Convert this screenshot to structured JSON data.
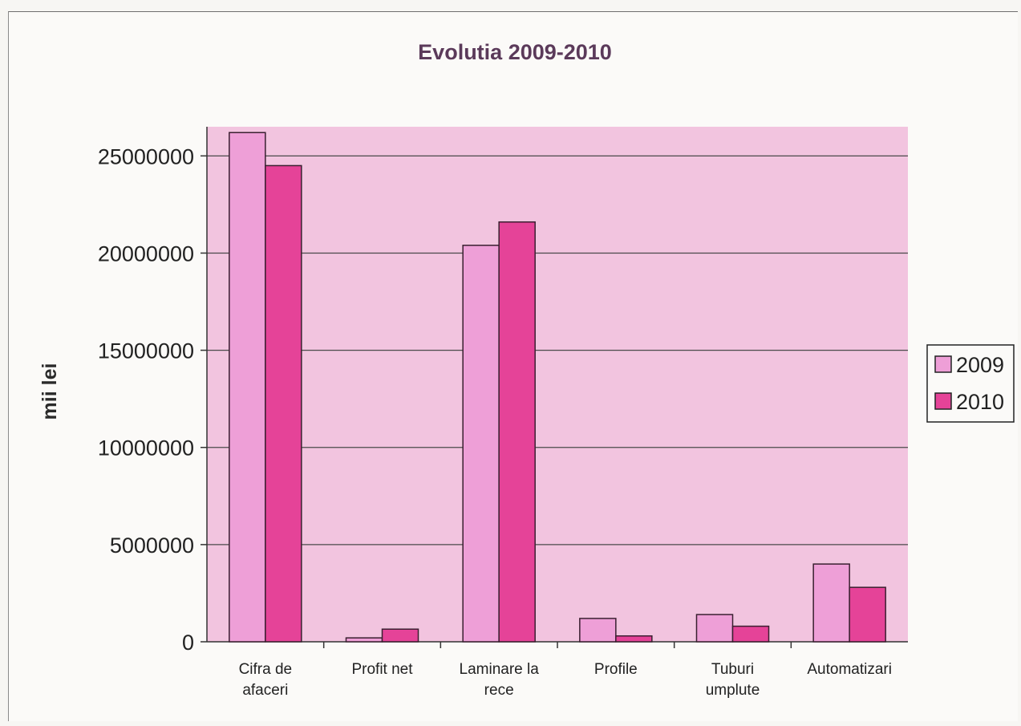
{
  "chart_data": {
    "type": "bar",
    "title": "Evolutia 2009-2010",
    "ylabel": "mii lei",
    "xlabel": "",
    "categories": [
      [
        "Cifra de",
        "afaceri"
      ],
      [
        "Profit net"
      ],
      [
        "Laminare la",
        "rece"
      ],
      [
        "Profile"
      ],
      [
        "Tuburi",
        "umplute"
      ],
      [
        "Automatizari"
      ]
    ],
    "series": [
      {
        "name": "2009",
        "color": "#ee9fd7",
        "values": [
          26200000,
          200000,
          20400000,
          1200000,
          1400000,
          4000000
        ]
      },
      {
        "name": "2010",
        "color": "#e54398",
        "values": [
          24500000,
          650000,
          21600000,
          300000,
          800000,
          2800000
        ]
      }
    ],
    "ylim": [
      0,
      26500000
    ],
    "yticks": [
      0,
      5000000,
      10000000,
      15000000,
      20000000,
      25000000
    ],
    "ytick_labels": [
      "0",
      "5000000",
      "10000000",
      "15000000",
      "20000000",
      "25000000"
    ],
    "grid": true,
    "legend_position": "right",
    "plot_background": "#f2c4df"
  }
}
